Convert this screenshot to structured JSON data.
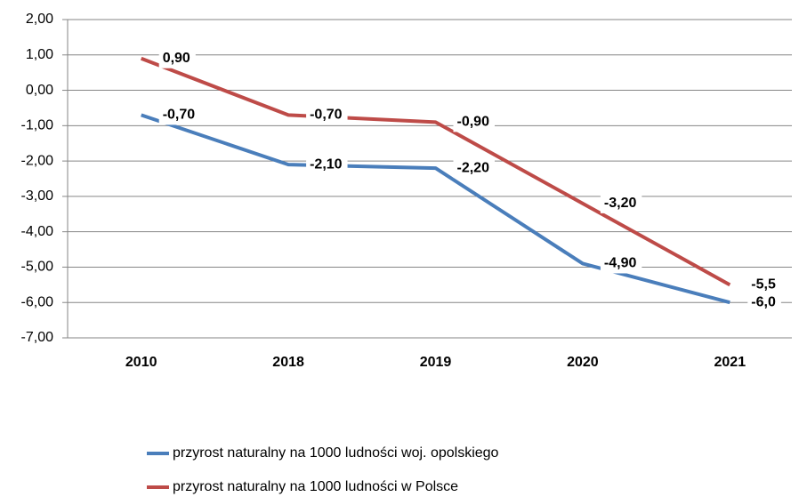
{
  "chart_data": {
    "type": "line",
    "categories": [
      "2010",
      "2018",
      "2019",
      "2020",
      "2021"
    ],
    "series": [
      {
        "name": "przyrost naturalny na 1000 ludności woj. opolskiego",
        "color": "#4a7ebb",
        "values": [
          -0.7,
          -2.1,
          -2.2,
          -4.9,
          -6.0
        ],
        "value_labels": [
          "-0,70",
          "-2,10",
          "-2,20",
          "-4,90",
          "-6,0"
        ]
      },
      {
        "name": "przyrost naturalny na 1000 ludności w Polsce",
        "color": "#be4b48",
        "values": [
          0.9,
          -0.7,
          -0.9,
          -3.2,
          -5.5
        ],
        "value_labels": [
          "0,90",
          "-0,70",
          "-0,90",
          "-3,20",
          "-5,5"
        ]
      }
    ],
    "ylim": [
      -7,
      2
    ],
    "yticks": [
      {
        "value": -7,
        "label": "-7,00"
      },
      {
        "value": -6,
        "label": "-6,00"
      },
      {
        "value": -5,
        "label": "-5,00"
      },
      {
        "value": -4,
        "label": "-4,00"
      },
      {
        "value": -3,
        "label": "-3,00"
      },
      {
        "value": -2,
        "label": "-2,00"
      },
      {
        "value": -1,
        "label": "-1,00"
      },
      {
        "value": 0,
        "label": "0,00"
      },
      {
        "value": 1,
        "label": "1,00"
      },
      {
        "value": 2,
        "label": "2,00"
      }
    ],
    "grid": true,
    "legend": "bottom"
  }
}
